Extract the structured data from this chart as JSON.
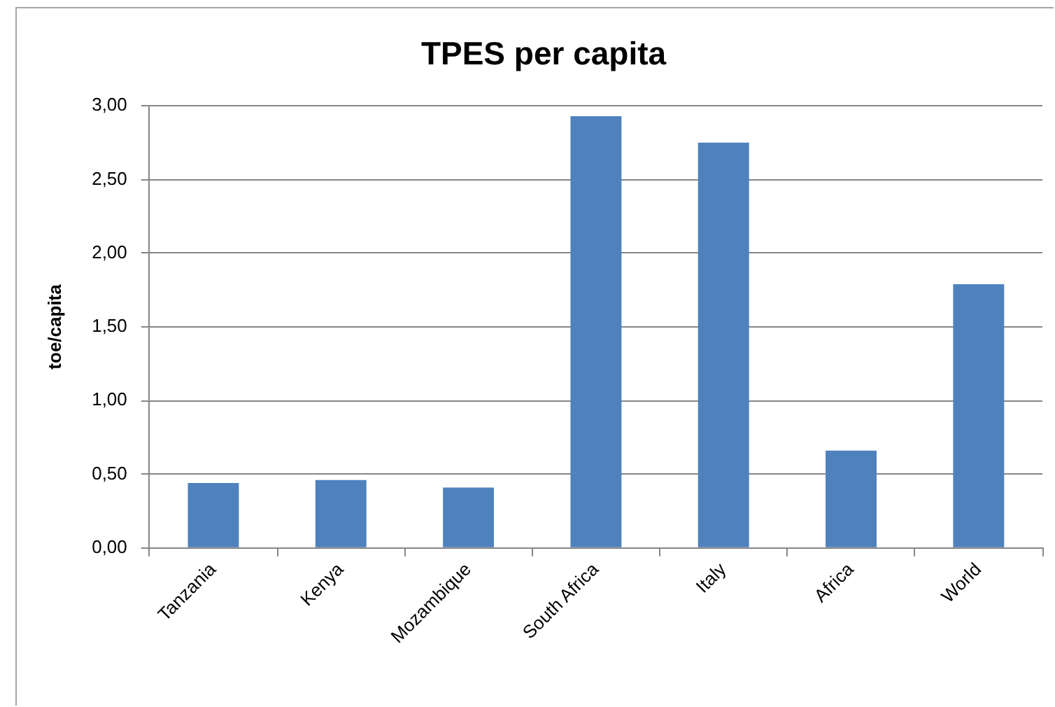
{
  "chart_data": {
    "type": "bar",
    "title": "TPES per capita",
    "ylabel": "toe/capita",
    "categories": [
      "Tanzania",
      "Kenya",
      "Mozambique",
      "South Africa",
      "Italy",
      "Africa",
      "World"
    ],
    "values": [
      0.44,
      0.46,
      0.41,
      2.93,
      2.75,
      0.66,
      1.79
    ],
    "color": "#4f81bd",
    "ylim": [
      0,
      3
    ],
    "yticks": [
      {
        "value": 0,
        "label": "0,00"
      },
      {
        "value": 0.5,
        "label": "0,50"
      },
      {
        "value": 1,
        "label": "1,00"
      },
      {
        "value": 1.5,
        "label": "1,50"
      },
      {
        "value": 2,
        "label": "2,00"
      },
      {
        "value": 2.5,
        "label": "2,50"
      },
      {
        "value": 3,
        "label": "3,00"
      }
    ],
    "grid": "y"
  }
}
